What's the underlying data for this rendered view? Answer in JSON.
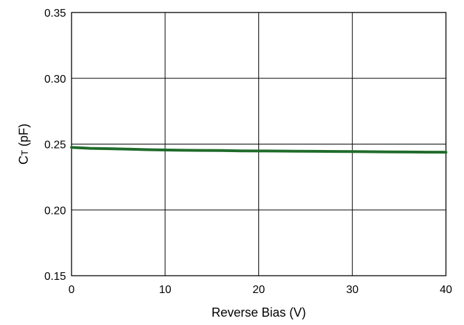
{
  "chart_data": {
    "type": "line",
    "title": "",
    "xlabel": "Reverse Bias (V)",
    "ylabel": {
      "symbol": "C",
      "subscript": "T",
      "unit": " (pF)"
    },
    "xlim": [
      0,
      40
    ],
    "ylim": [
      0.15,
      0.35
    ],
    "x_ticks": [
      0,
      10,
      20,
      30,
      40
    ],
    "x_tick_labels": [
      "0",
      "10",
      "20",
      "30",
      "40"
    ],
    "y_ticks": [
      0.15,
      0.2,
      0.25,
      0.3,
      0.35
    ],
    "y_tick_labels": [
      "0.15",
      "0.20",
      "0.25",
      "0.30",
      "0.35"
    ],
    "grid": true,
    "legend": "none",
    "series": [
      {
        "color": "#1f6b2a",
        "x": [
          0,
          2,
          4,
          6,
          8,
          10,
          12,
          14,
          16,
          18,
          20,
          22,
          24,
          26,
          28,
          30,
          32,
          34,
          36,
          38,
          40
        ],
        "y": [
          0.2475,
          0.2468,
          0.2465,
          0.2462,
          0.2458,
          0.2455,
          0.2453,
          0.2452,
          0.2451,
          0.2449,
          0.2448,
          0.2447,
          0.2446,
          0.2445,
          0.2444,
          0.2443,
          0.2442,
          0.2441,
          0.244,
          0.2439,
          0.2438
        ]
      }
    ]
  }
}
